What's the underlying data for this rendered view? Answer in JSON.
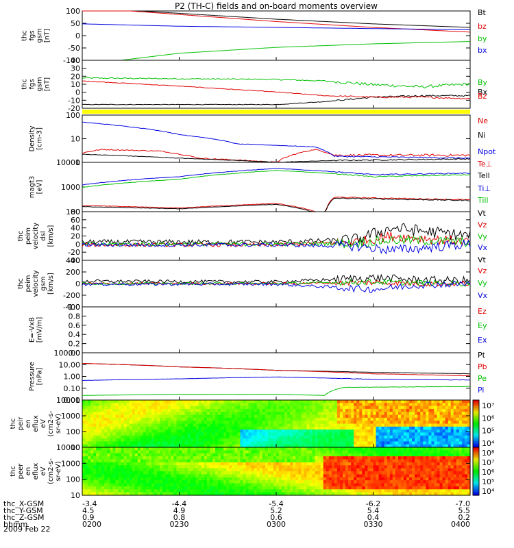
{
  "title": "P2 (TH-C) fields and on-board moments overview",
  "date_label": "2009 Feb 22",
  "orbit_rows": [
    {
      "label": "thc_X-GSM",
      "values": [
        "-3.4",
        "-4.4",
        "-5.4",
        "-6.2",
        "-7.0"
      ]
    },
    {
      "label": "thc_Y-GSM",
      "values": [
        "4.5",
        "4.9",
        "5.2",
        "5.4",
        "5.5"
      ]
    },
    {
      "label": "thc_Z-GSM",
      "values": [
        "0.9",
        "0.8",
        "0.6",
        "0.4",
        "0.2"
      ]
    },
    {
      "label": "hhmm",
      "values": [
        "0200",
        "0230",
        "0300",
        "0330",
        "0400"
      ]
    }
  ],
  "colorbars": [
    {
      "ticks": [
        "10⁷",
        "10⁶",
        "10⁵",
        "10⁴"
      ]
    },
    {
      "ticks": [
        "10⁸",
        "10⁷",
        "10⁶",
        "10⁵",
        "10⁴"
      ]
    }
  ],
  "chart_data": [
    {
      "type": "line",
      "ylabel_lines": [
        "thc",
        "fgs",
        "gsm",
        "[nT]"
      ],
      "yticks": [
        "100",
        "50",
        "0",
        "-50",
        "-100"
      ],
      "ylim": [
        -100,
        110
      ],
      "log": false,
      "series": [
        {
          "name": "Bt",
          "color": "#000000",
          "x": [
            2.0,
            2.5,
            3.0,
            3.5,
            4.0
          ],
          "y": [
            125,
            100,
            75,
            55,
            40
          ],
          "noise": 0
        },
        {
          "name": "bz",
          "color": "#e00000",
          "x": [
            2.0,
            2.5,
            3.0,
            3.5,
            4.0
          ],
          "y": [
            125,
            95,
            65,
            40,
            20
          ],
          "noise": 0
        },
        {
          "name": "by",
          "color": "#00c000",
          "x": [
            2.0,
            2.5,
            3.0,
            3.5,
            4.0
          ],
          "y": [
            -120,
            -70,
            -45,
            -30,
            -20
          ],
          "noise": 0
        },
        {
          "name": "bx",
          "color": "#0000e0",
          "x": [
            2.0,
            2.5,
            3.0,
            3.5,
            4.0
          ],
          "y": [
            55,
            45,
            40,
            35,
            30
          ],
          "noise": 0
        }
      ]
    },
    {
      "type": "line",
      "ylabel_lines": [
        "thc",
        "fgs",
        "gsm",
        "[nT]"
      ],
      "yticks": [
        "40",
        "30",
        "20",
        "10",
        "0",
        "-10",
        "-20"
      ],
      "ylim": [
        -25,
        40
      ],
      "log": false,
      "series": [
        {
          "name": "By",
          "color": "#00c000",
          "x": [
            2.0,
            2.5,
            3.0,
            3.25,
            3.5,
            3.75,
            4.0
          ],
          "y": [
            16,
            15,
            14,
            12,
            7,
            4,
            8
          ],
          "noise": 2
        },
        {
          "name": "Bx",
          "color": "#000000",
          "x": [
            2.0,
            2.5,
            3.0,
            3.25,
            3.5,
            3.75,
            4.0
          ],
          "y": [
            -20,
            -20,
            -20,
            -16,
            -10,
            -8,
            -8
          ],
          "noise": 1
        },
        {
          "name": "Bz",
          "color": "#e00000",
          "x": [
            2.0,
            2.5,
            3.0,
            3.25,
            3.5,
            3.75,
            4.0
          ],
          "y": [
            12,
            5,
            -3,
            -8,
            -10,
            -10,
            -12
          ],
          "noise": 1
        }
      ]
    },
    {
      "type": "line",
      "ylabel_lines": [
        "Density",
        "[cm-3]"
      ],
      "yticks": [
        "100",
        "10",
        "1"
      ],
      "ylim": [
        1,
        100
      ],
      "log": true,
      "series": [
        {
          "name": "Ne",
          "color": "#e00000",
          "x": [
            2.0,
            2.1,
            2.4,
            2.6,
            3.0,
            3.2,
            3.3,
            4.0
          ],
          "y": [
            2.5,
            3.5,
            3.0,
            1.5,
            1.0,
            3.5,
            2.0,
            2.0
          ],
          "noise": 0.1
        },
        {
          "name": "Ni",
          "color": "#000000",
          "x": [
            2.0,
            2.5,
            3.0,
            3.3,
            4.0
          ],
          "y": [
            2.2,
            1.5,
            1.0,
            1.2,
            1.4
          ],
          "noise": 0.05
        },
        {
          "name": "Npot",
          "color": "#0000e0",
          "x": [
            2.0,
            2.2,
            2.5,
            2.8,
            3.2,
            3.3,
            4.0
          ],
          "y": [
            50,
            35,
            15,
            6,
            4.5,
            1.8,
            1.5
          ],
          "noise": 0.05
        }
      ]
    },
    {
      "type": "line",
      "ylabel_lines": [
        "magt3",
        "[eV]"
      ],
      "yticks": [
        "10000",
        "1000",
        "100"
      ],
      "ylim": [
        40,
        10000
      ],
      "log": true,
      "series": [
        {
          "name": "Te⊥",
          "color": "#e00000",
          "x": [
            2.0,
            2.5,
            3.0,
            3.25,
            3.3,
            4.0
          ],
          "y": [
            80,
            60,
            100,
            25,
            200,
            150
          ],
          "noise": 0.05
        },
        {
          "name": "Tell",
          "color": "#000000",
          "x": [
            2.0,
            2.5,
            3.0,
            3.25,
            3.3,
            4.0
          ],
          "y": [
            70,
            55,
            90,
            22,
            180,
            140
          ],
          "noise": 0.05
        },
        {
          "name": "Ti⊥",
          "color": "#0000e0",
          "x": [
            2.0,
            2.5,
            3.0,
            3.5,
            4.0
          ],
          "y": [
            800,
            2000,
            5000,
            2500,
            3000
          ],
          "noise": 0.05
        },
        {
          "name": "Till",
          "color": "#00c000",
          "x": [
            2.0,
            2.5,
            3.0,
            3.5,
            4.0
          ],
          "y": [
            600,
            1500,
            4000,
            2000,
            2500
          ],
          "noise": 0.05
        }
      ]
    },
    {
      "type": "line",
      "ylabel_lines": [
        "thc",
        "peim",
        "velocity",
        "dsl",
        "[km/s]"
      ],
      "yticks": [
        "80",
        "60",
        "40",
        "20",
        "0",
        "-20",
        "-40"
      ],
      "ylim": [
        -40,
        80
      ],
      "log": false,
      "series": [
        {
          "name": "Vt",
          "color": "#000000",
          "x": [
            2.0,
            3.0,
            3.4,
            3.6,
            4.0
          ],
          "y": [
            5,
            5,
            10,
            40,
            20
          ],
          "noise": 15
        },
        {
          "name": "Vz",
          "color": "#e00000",
          "x": [
            2.0,
            3.0,
            3.4,
            3.6,
            4.0
          ],
          "y": [
            -2,
            -2,
            5,
            20,
            5
          ],
          "noise": 12
        },
        {
          "name": "Vy",
          "color": "#00c000",
          "x": [
            2.0,
            3.0,
            3.4,
            3.6,
            4.0
          ],
          "y": [
            0,
            0,
            2,
            10,
            5
          ],
          "noise": 12
        },
        {
          "name": "Vx",
          "color": "#0000e0",
          "x": [
            2.0,
            3.0,
            3.4,
            3.6,
            4.0
          ],
          "y": [
            -2,
            -2,
            -5,
            -15,
            0
          ],
          "noise": 12
        }
      ]
    },
    {
      "type": "line",
      "ylabel_lines": [
        "thc",
        "peim",
        "velocity",
        "gsm",
        "[km/s]"
      ],
      "yticks": [
        "400",
        "200",
        "0",
        "-200",
        "-400"
      ],
      "ylim": [
        -400,
        400
      ],
      "log": false,
      "series": [
        {
          "name": "Vt",
          "color": "#000000",
          "x": [
            2.0,
            3.0,
            3.5,
            3.75,
            4.0
          ],
          "y": [
            40,
            30,
            100,
            60,
            50
          ],
          "noise": 70
        },
        {
          "name": "Vz",
          "color": "#e00000",
          "x": [
            2.0,
            3.0,
            3.5,
            3.75,
            4.0
          ],
          "y": [
            0,
            0,
            20,
            0,
            0
          ],
          "noise": 50
        },
        {
          "name": "Vy",
          "color": "#00c000",
          "x": [
            2.0,
            3.0,
            3.5,
            3.75,
            4.0
          ],
          "y": [
            0,
            0,
            30,
            10,
            0
          ],
          "noise": 50
        },
        {
          "name": "Vx",
          "color": "#0000e0",
          "x": [
            2.0,
            3.0,
            3.5,
            3.75,
            4.0
          ],
          "y": [
            -10,
            -10,
            -100,
            -20,
            0
          ],
          "noise": 60
        }
      ]
    },
    {
      "type": "line",
      "ylabel_lines": [
        "E=-VxB",
        "[mV/m]"
      ],
      "yticks": [
        "1.0",
        "0.8",
        "0.6",
        "0.4",
        "0.2",
        "0.0"
      ],
      "ylim": [
        0,
        1
      ],
      "log": false,
      "series": [
        {
          "name": "Ez",
          "color": "#e00000",
          "x": [],
          "y": []
        },
        {
          "name": "Ey",
          "color": "#00c000",
          "x": [],
          "y": []
        },
        {
          "name": "Ex",
          "color": "#0000e0",
          "x": [],
          "y": []
        }
      ]
    },
    {
      "type": "line",
      "ylabel_lines": [
        "Pressure",
        "[nPa]"
      ],
      "yticks": [
        "100.00",
        "10.00",
        "1.00",
        "0.10",
        "0.01"
      ],
      "ylim": [
        0.008,
        100
      ],
      "log": true,
      "series": [
        {
          "name": "Pt",
          "color": "#000000",
          "x": [
            2.0,
            2.5,
            3.0,
            3.5,
            4.0
          ],
          "y": [
            12,
            6,
            3,
            2,
            1.5
          ],
          "noise": 0.02
        },
        {
          "name": "Pb",
          "color": "#e00000",
          "x": [
            2.0,
            2.5,
            3.0,
            3.5,
            4.0
          ],
          "y": [
            12,
            6,
            3,
            1.5,
            1.0
          ],
          "noise": 0.02
        },
        {
          "name": "Pe",
          "color": "#00c000",
          "x": [
            2.0,
            2.5,
            3.0,
            3.25,
            3.35,
            4.0
          ],
          "y": [
            0.02,
            0.025,
            0.025,
            0.02,
            0.1,
            0.12
          ],
          "noise": 0.03
        },
        {
          "name": "Pi",
          "color": "#0000e0",
          "x": [
            2.0,
            2.5,
            3.0,
            3.5,
            4.0
          ],
          "y": [
            0.4,
            0.55,
            0.8,
            0.5,
            0.45
          ],
          "noise": 0.04
        }
      ]
    },
    {
      "type": "heatmap",
      "ylabel_lines": [
        "thc",
        "peir",
        "en",
        "eflux",
        "eV",
        "(cm2-s-",
        "sr-eV)"
      ],
      "yticks": [
        "10000",
        "1000",
        "100",
        "10"
      ],
      "ylim": [
        7,
        20000
      ],
      "log": true
    },
    {
      "type": "heatmap",
      "ylabel_lines": [
        "thc",
        "peer",
        "en",
        "eflux",
        "eV",
        "(cm2-s-",
        "sr-eV)"
      ],
      "yticks": [
        "10000",
        "1000",
        "100",
        "10"
      ],
      "ylim": [
        7,
        20000
      ],
      "log": true
    }
  ]
}
